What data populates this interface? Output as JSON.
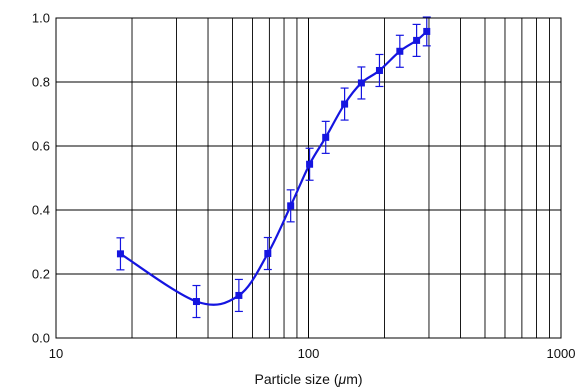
{
  "chart_data": {
    "type": "line",
    "title": "",
    "xlabel_prefix": "Particle size (",
    "xlabel_unit": "μ",
    "xlabel_suffix": "m)",
    "ylabel": "",
    "x_scale": "log",
    "xlim": [
      10,
      1000
    ],
    "ylim": [
      0,
      1.0
    ],
    "x_ticks": [
      10,
      100,
      1000
    ],
    "x_tick_labels": [
      "10",
      "100",
      "1000"
    ],
    "y_ticks": [
      0.0,
      0.2,
      0.4,
      0.6,
      0.8,
      1.0
    ],
    "y_tick_labels": [
      "0.0",
      "0.2",
      "0.4",
      "0.6",
      "0.8",
      "1.0"
    ],
    "grid": true,
    "legend": "none",
    "colors": {
      "series": "#1515e0",
      "grid": "#000000",
      "text": "#111111"
    },
    "series": [
      {
        "marker": "square",
        "smooth": true,
        "points": [
          {
            "x": 18,
            "y": 0.263,
            "err": 0.05
          },
          {
            "x": 36,
            "y": 0.114,
            "err": 0.05
          },
          {
            "x": 53,
            "y": 0.133,
            "err": 0.05
          },
          {
            "x": 69,
            "y": 0.264,
            "err": 0.05
          },
          {
            "x": 85,
            "y": 0.413,
            "err": 0.05
          },
          {
            "x": 101,
            "y": 0.543,
            "err": 0.05
          },
          {
            "x": 117,
            "y": 0.627,
            "err": 0.05
          },
          {
            "x": 139,
            "y": 0.731,
            "err": 0.05
          },
          {
            "x": 162,
            "y": 0.797,
            "err": 0.05
          },
          {
            "x": 191,
            "y": 0.836,
            "err": 0.05
          },
          {
            "x": 230,
            "y": 0.896,
            "err": 0.05
          },
          {
            "x": 268,
            "y": 0.93,
            "err": 0.05
          },
          {
            "x": 294,
            "y": 0.958,
            "err": 0.045
          }
        ]
      }
    ]
  }
}
